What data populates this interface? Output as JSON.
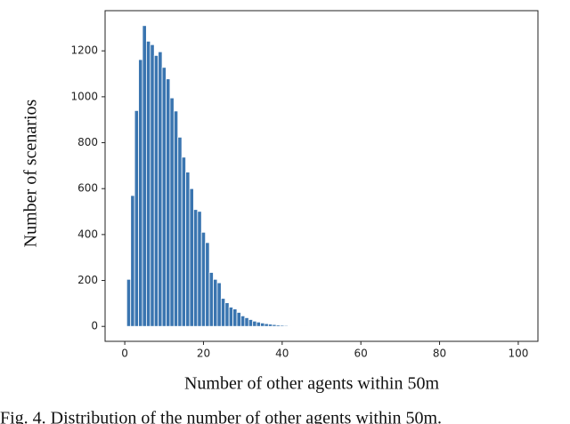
{
  "chart_data": {
    "type": "histogram",
    "x_label": "Number of other agents within 50m",
    "y_label": "Number of scenarios",
    "caption": "Fig. 4. Distribution of the number of other agents within 50m.",
    "color": "#3a75b0",
    "bins": [
      0.5,
      1.5,
      2.5,
      3.5,
      4.5,
      5.5,
      6.5,
      7.5,
      8.5,
      9.5,
      10.5,
      11.5,
      12.5,
      13.5,
      14.5,
      15.5,
      16.5,
      17.5,
      18.5,
      19.5,
      20.5,
      21.5,
      22.5,
      23.5,
      24.5,
      25.5,
      26.5,
      27.5,
      28.5,
      29.5,
      30.5,
      31.5,
      32.5,
      33.5,
      34.5,
      35.5,
      36.5,
      37.5,
      38.5,
      39.5,
      40.5,
      41.5,
      42.5,
      43.5,
      44.5,
      45.5,
      46.5
    ],
    "values": [
      205,
      570,
      940,
      1162,
      1310,
      1242,
      1227,
      1180,
      1196,
      1128,
      1078,
      995,
      938,
      824,
      737,
      672,
      600,
      509,
      501,
      410,
      365,
      235,
      205,
      190,
      122,
      103,
      84,
      76,
      61,
      46,
      38,
      30,
      23,
      19,
      15,
      12,
      10,
      8,
      6,
      5,
      4,
      3,
      2,
      2,
      1,
      1
    ],
    "xlim": [
      -5,
      105
    ],
    "ylim": [
      -65,
      1375
    ],
    "xticks": [
      0,
      20,
      40,
      60,
      80,
      100
    ],
    "yticks": [
      0,
      200,
      400,
      600,
      800,
      1000,
      1200
    ]
  }
}
